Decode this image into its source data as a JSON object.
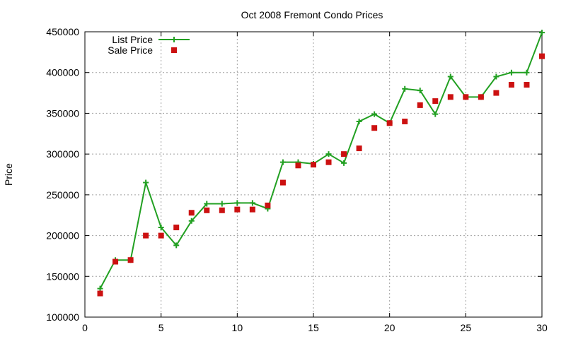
{
  "chart_data": {
    "type": "line",
    "title": "Oct 2008 Fremont Condo Prices",
    "xlabel": "",
    "ylabel": "Price",
    "xlim": [
      0,
      30
    ],
    "ylim": [
      100000,
      450000
    ],
    "xticks": [
      0,
      5,
      10,
      15,
      20,
      25,
      30
    ],
    "yticks": [
      100000,
      150000,
      200000,
      250000,
      300000,
      350000,
      400000,
      450000
    ],
    "grid": true,
    "legend_position": "top-left",
    "series": [
      {
        "name": "List Price",
        "style": "line-with-plus-markers",
        "color": "#22a022",
        "x": [
          1,
          2,
          3,
          4,
          5,
          6,
          7,
          8,
          9,
          10,
          11,
          12,
          13,
          14,
          15,
          16,
          17,
          18,
          19,
          20,
          21,
          22,
          23,
          24,
          25,
          26,
          27,
          28,
          29,
          30
        ],
        "values": [
          135000,
          170000,
          170000,
          265000,
          210000,
          188000,
          218000,
          239000,
          239000,
          240000,
          240000,
          233000,
          290000,
          290000,
          288000,
          300000,
          289000,
          340000,
          349000,
          338000,
          380000,
          378000,
          349000,
          395000,
          370000,
          370000,
          395000,
          400000,
          400000,
          449000
        ]
      },
      {
        "name": "Sale Price",
        "style": "square-markers",
        "color": "#cc1111",
        "x": [
          1,
          2,
          3,
          4,
          5,
          6,
          7,
          8,
          9,
          10,
          11,
          12,
          13,
          14,
          15,
          16,
          17,
          18,
          19,
          20,
          21,
          22,
          23,
          24,
          25,
          26,
          27,
          28,
          29,
          30
        ],
        "values": [
          129000,
          168000,
          170000,
          200000,
          200000,
          210000,
          228000,
          231000,
          231000,
          232000,
          232000,
          237000,
          265000,
          286000,
          287000,
          290000,
          300000,
          307000,
          332000,
          338000,
          340000,
          360000,
          365000,
          370000,
          370000,
          370000,
          375000,
          385000,
          385000,
          420000
        ]
      }
    ]
  }
}
